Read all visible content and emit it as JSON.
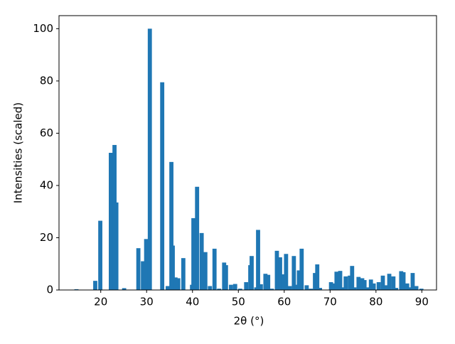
{
  "chart_data": {
    "type": "bar",
    "xlabel": "2θ (°)",
    "ylabel": "Intensities (scaled)",
    "color": "#1f77b4",
    "x": [
      14.7,
      18.8,
      19.9,
      22.2,
      23.0,
      23.4,
      25.1,
      28.2,
      29.2,
      29.9,
      30.7,
      33.4,
      34.6,
      35.4,
      35.7,
      36.3,
      36.9,
      38.0,
      39.9,
      40.2,
      41.0,
      42.0,
      42.8,
      43.8,
      44.8,
      45.8,
      46.9,
      47.3,
      48.4,
      49.3,
      50.4,
      51.7,
      52.6,
      52.9,
      53.9,
      54.3,
      54.9,
      55.9,
      56.5,
      57.3,
      58.4,
      59.1,
      59.8,
      60.4,
      61.2,
      62.1,
      62.7,
      63.2,
      63.8,
      64.9,
      65.8,
      66.7,
      67.2,
      67.8,
      70.2,
      70.8,
      71.4,
      72.2,
      72.9,
      73.4,
      74.3,
      74.8,
      75.3,
      76.2,
      77.0,
      77.5,
      78.1,
      78.9,
      79.5,
      80.6,
      81.5,
      82.3,
      82.9,
      83.8,
      84.4,
      85.5,
      86.0,
      86.8,
      87.4,
      88.0,
      88.8,
      89.9
    ],
    "values": [
      0.3,
      3.5,
      26.5,
      52.5,
      55.5,
      33.5,
      0.7,
      16,
      11,
      19.5,
      100,
      79.5,
      1.5,
      49,
      17,
      4.8,
      4.5,
      12.2,
      2,
      27.5,
      39.5,
      21.8,
      14.5,
      1.5,
      15.8,
      0.5,
      10.5,
      9.5,
      2,
      2.3,
      0.5,
      3,
      9.5,
      13,
      1,
      23,
      2.2,
      6.2,
      5.8,
      0.5,
      15,
      12.5,
      6,
      13.8,
      1.5,
      13,
      2,
      7.5,
      15.8,
      1.8,
      0.5,
      6.5,
      9.8,
      0.8,
      3,
      2.5,
      7,
      7.3,
      1,
      5.2,
      5.5,
      9.2,
      1,
      5,
      4.5,
      3.8,
      1,
      4,
      2.5,
      3,
      5.5,
      1.8,
      6.2,
      5.2,
      0.8,
      7.2,
      6.8,
      2.5,
      1,
      6.5,
      1.5,
      0.5
    ],
    "xlim": [
      10.9,
      93.2
    ],
    "xticks": [
      20,
      30,
      40,
      50,
      60,
      70,
      80,
      90
    ],
    "ylim": [
      0,
      105
    ],
    "yticks": [
      0,
      20,
      40,
      60,
      80,
      100
    ]
  }
}
